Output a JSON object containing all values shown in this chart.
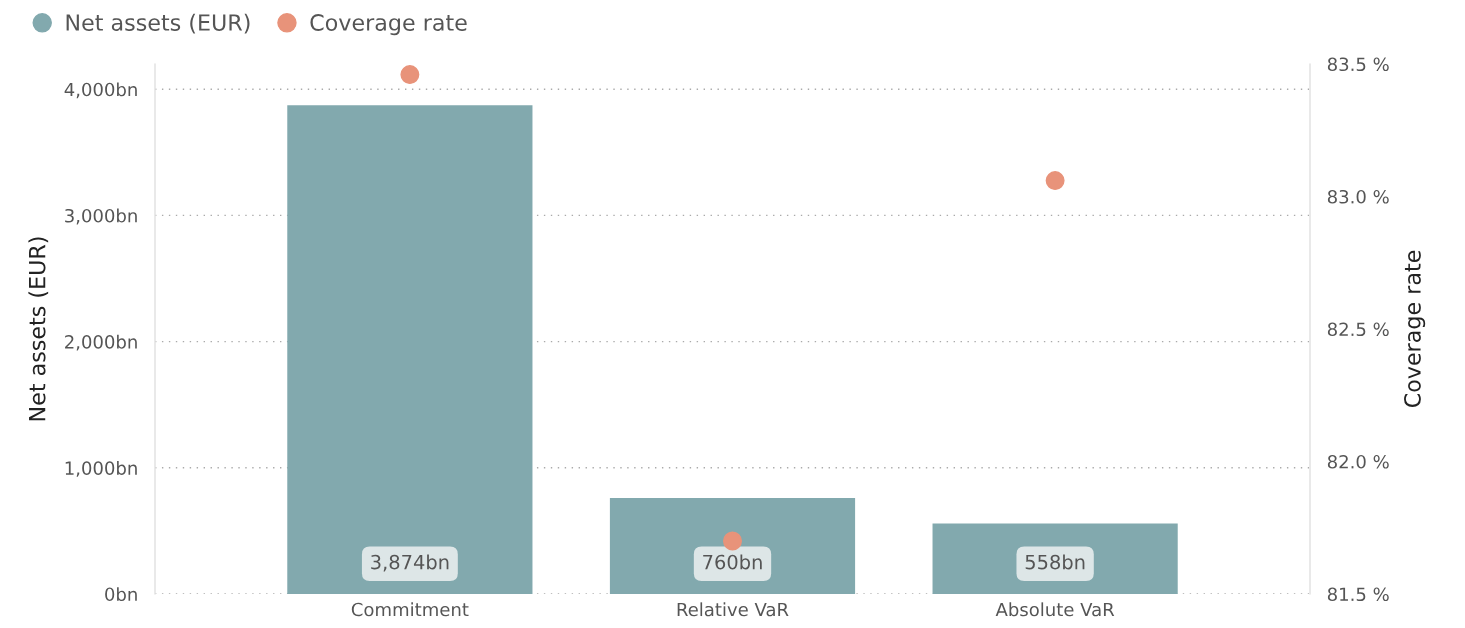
{
  "chart_data": {
    "type": "bar",
    "categories": [
      "Commitment",
      "Relative VaR",
      "Absolute VaR"
    ],
    "series": [
      {
        "name": "Net assets (EUR)",
        "color": "#82a9ae",
        "values": [
          3874,
          760,
          558
        ],
        "value_labels": [
          "3,874bn",
          "760bn",
          "558bn"
        ]
      },
      {
        "name": "Coverage rate",
        "type": "scatter",
        "axis": "y2",
        "color": "#e8937a",
        "values": [
          83.46,
          81.7,
          83.06
        ]
      }
    ],
    "ylabel": "Net assets (EUR)",
    "y2label": "Coverage rate",
    "ylim": [
      0,
      4200
    ],
    "yticks": [
      {
        "value": 0,
        "label": "0bn"
      },
      {
        "value": 1000,
        "label": "1,000bn"
      },
      {
        "value": 2000,
        "label": "2,000bn"
      },
      {
        "value": 3000,
        "label": "3,000bn"
      },
      {
        "value": 4000,
        "label": "4,000bn"
      }
    ],
    "y2lim": [
      81.5,
      83.5
    ],
    "y2ticks": [
      {
        "value": 81.5,
        "label": "81.5 %"
      },
      {
        "value": 82.0,
        "label": "82.0 %"
      },
      {
        "value": 82.5,
        "label": "82.5 %"
      },
      {
        "value": 83.0,
        "label": "83.0 %"
      },
      {
        "value": 83.5,
        "label": "83.5 %"
      }
    ],
    "grid": "y",
    "legend": "top left",
    "marker": "circle"
  }
}
